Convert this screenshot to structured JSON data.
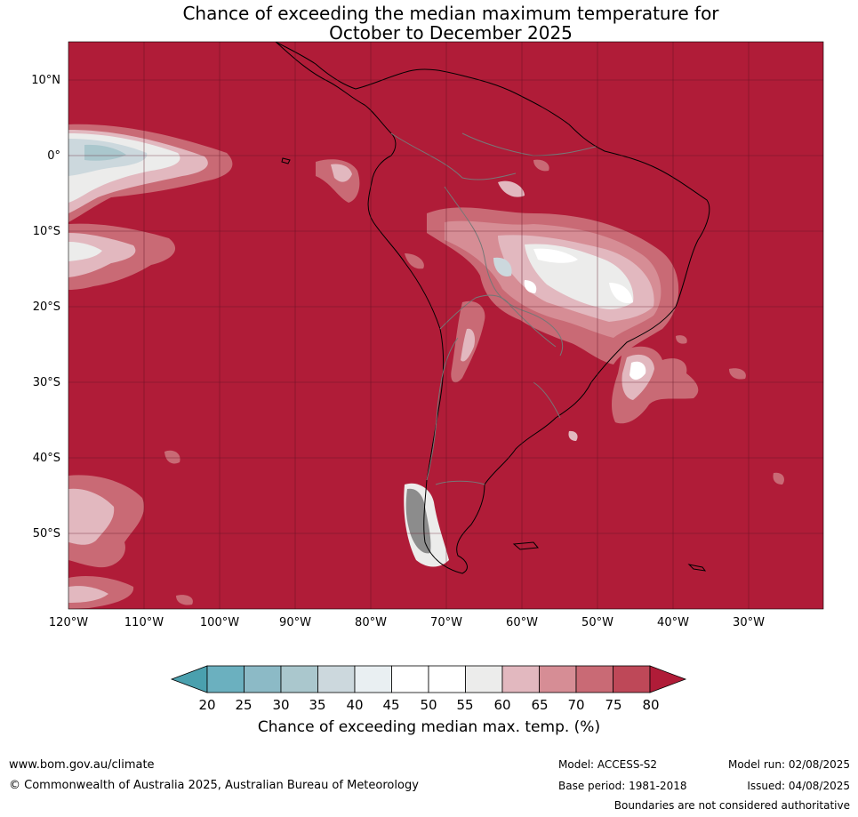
{
  "title_line1": "Chance of exceeding the median maximum temperature for",
  "title_line2": "October to December 2025",
  "map": {
    "lat_labels": [
      "10°N",
      "0°",
      "10°S",
      "20°S",
      "30°S",
      "40°S",
      "50°S"
    ],
    "lat_values": [
      10,
      0,
      -10,
      -20,
      -30,
      -40,
      -50
    ],
    "lon_labels": [
      "120°W",
      "110°W",
      "100°W",
      "90°W",
      "80°W",
      "70°W",
      "60°W",
      "50°W",
      "40°W",
      "30°W"
    ],
    "lon_values": [
      -120,
      -110,
      -100,
      -90,
      -80,
      -70,
      -60,
      -50,
      -40,
      -30
    ],
    "lat_range": [
      -60,
      15
    ],
    "lon_range": [
      -120,
      -20
    ],
    "dominant_category": "80+"
  },
  "colorbar": {
    "ticks": [
      "20",
      "25",
      "30",
      "35",
      "40",
      "45",
      "50",
      "55",
      "60",
      "65",
      "70",
      "75",
      "80"
    ],
    "colors": [
      "#4aa0ae",
      "#6bb0bf",
      "#8cbac6",
      "#aac7cd",
      "#ccd8dd",
      "#e9eff2",
      "#ffffff",
      "#ffffff",
      "#ececeb",
      "#e2b8bf",
      "#d68d95",
      "#c96a75",
      "#be4858",
      "#b01c38"
    ],
    "label": "Chance of exceeding median max. temp. (%)"
  },
  "footer": {
    "website": "www.bom.gov.au/climate",
    "copyright": "© Commonwealth of Australia 2025, Australian Bureau of Meteorology",
    "model": "Model: ACCESS-S2",
    "base_period": "Base period: 1981-2018",
    "model_run": "Model run: 02/08/2025",
    "issued": "Issued: 04/08/2025",
    "disclaimer": "Boundaries are not considered authoritative"
  }
}
